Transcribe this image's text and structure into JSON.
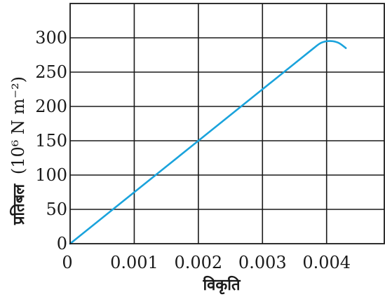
{
  "chart_data": {
    "type": "line",
    "xlabel": "विकृति",
    "ylabel": "प्रतिबल",
    "ylabel_unit": "(10⁶ N m⁻²)",
    "xlim": [
      0,
      0.0049
    ],
    "ylim": [
      0,
      350
    ],
    "x_ticks": [
      0,
      0.001,
      0.002,
      0.003,
      0.004
    ],
    "x_tick_labels": [
      "0",
      "0.001",
      "0.002",
      "0.003",
      "0.004"
    ],
    "y_ticks": [
      0,
      50,
      100,
      150,
      200,
      250,
      300
    ],
    "y_tick_labels": [
      "0",
      "50",
      "100",
      "150",
      "200",
      "250",
      "300"
    ],
    "grid": true,
    "series": [
      {
        "color": "#1aa3dc",
        "x": [
          0,
          0.0005,
          0.001,
          0.0015,
          0.002,
          0.0025,
          0.003,
          0.0035,
          0.0038,
          0.0039,
          0.004,
          0.0041,
          0.0042,
          0.0043
        ],
        "y": [
          0,
          37.5,
          75,
          112.5,
          150,
          187.5,
          225,
          262.5,
          285,
          292,
          295,
          295,
          292,
          285
        ]
      }
    ]
  }
}
